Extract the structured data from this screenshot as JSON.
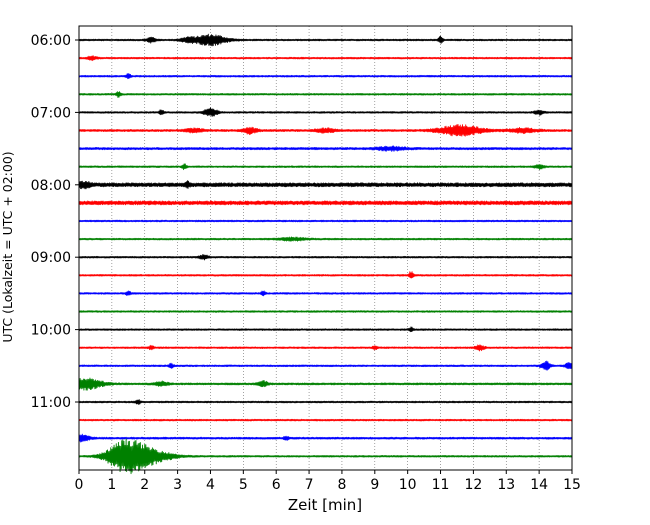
{
  "chart_data": {
    "type": "line",
    "title": "",
    "xlabel": "Zeit  [min]",
    "ylabel": "UTC (Lokalzeit = UTC + 02:00)",
    "xlim": [
      0,
      15
    ],
    "x_ticks": [
      0,
      1,
      2,
      3,
      4,
      5,
      6,
      7,
      8,
      9,
      10,
      11,
      12,
      13,
      14,
      15
    ],
    "x_tick_labels": [
      "0",
      "1",
      "2",
      "3",
      "4",
      "5",
      "6",
      "7",
      "8",
      "9",
      "10",
      "11",
      "12",
      "13",
      "14",
      "15"
    ],
    "y_tick_labels": [
      "06:00",
      "07:00",
      "08:00",
      "09:00",
      "10:00",
      "11:00"
    ],
    "y_tick_trace_index": [
      0,
      4,
      8,
      12,
      16,
      20
    ],
    "grid": "vertical dotted at each minute",
    "legend": "none",
    "trace_colors": [
      "#000000",
      "#ff0000",
      "#0000ff",
      "#008000"
    ],
    "traces": [
      {
        "start": "06:00",
        "base_amp": 0.12,
        "events": [
          {
            "t": 2.2,
            "amp": 0.35,
            "w": 0.1
          },
          {
            "t": 3.3,
            "amp": 0.3,
            "w": 0.15
          },
          {
            "t": 4.0,
            "amp": 0.75,
            "w": 0.35
          },
          {
            "t": 11.0,
            "amp": 0.45,
            "w": 0.05
          }
        ]
      },
      {
        "start": "06:15",
        "base_amp": 0.12,
        "events": [
          {
            "t": 0.4,
            "amp": 0.25,
            "w": 0.1
          }
        ]
      },
      {
        "start": "06:30",
        "base_amp": 0.12,
        "events": [
          {
            "t": 1.5,
            "amp": 0.35,
            "w": 0.05
          }
        ]
      },
      {
        "start": "06:45",
        "base_amp": 0.12,
        "events": [
          {
            "t": 1.2,
            "amp": 0.35,
            "w": 0.05
          }
        ]
      },
      {
        "start": "07:00",
        "base_amp": 0.12,
        "events": [
          {
            "t": 2.5,
            "amp": 0.35,
            "w": 0.05
          },
          {
            "t": 4.0,
            "amp": 0.55,
            "w": 0.15
          },
          {
            "t": 14.0,
            "amp": 0.3,
            "w": 0.1
          }
        ]
      },
      {
        "start": "07:15",
        "base_amp": 0.15,
        "events": [
          {
            "t": 3.5,
            "amp": 0.25,
            "w": 0.2
          },
          {
            "t": 5.2,
            "amp": 0.45,
            "w": 0.15
          },
          {
            "t": 7.5,
            "amp": 0.3,
            "w": 0.2
          },
          {
            "t": 11.6,
            "amp": 0.75,
            "w": 0.45
          },
          {
            "t": 13.5,
            "amp": 0.3,
            "w": 0.3
          }
        ]
      },
      {
        "start": "07:30",
        "base_amp": 0.16,
        "events": [
          {
            "t": 9.5,
            "amp": 0.25,
            "w": 0.3
          }
        ]
      },
      {
        "start": "07:45",
        "base_amp": 0.12,
        "events": [
          {
            "t": 3.2,
            "amp": 0.35,
            "w": 0.05
          },
          {
            "t": 14.0,
            "amp": 0.3,
            "w": 0.1
          }
        ]
      },
      {
        "start": "08:00",
        "base_amp": 0.28,
        "events": [
          {
            "t": 0.15,
            "amp": 0.35,
            "w": 0.15
          },
          {
            "t": 3.3,
            "amp": 0.35,
            "w": 0.05
          }
        ]
      },
      {
        "start": "08:15",
        "base_amp": 0.28,
        "events": []
      },
      {
        "start": "08:30",
        "base_amp": 0.12,
        "events": []
      },
      {
        "start": "08:45",
        "base_amp": 0.12,
        "events": [
          {
            "t": 6.5,
            "amp": 0.2,
            "w": 0.3
          }
        ]
      },
      {
        "start": "09:00",
        "base_amp": 0.12,
        "events": [
          {
            "t": 3.8,
            "amp": 0.3,
            "w": 0.1
          }
        ]
      },
      {
        "start": "09:15",
        "base_amp": 0.12,
        "events": [
          {
            "t": 10.1,
            "amp": 0.5,
            "w": 0.05
          }
        ]
      },
      {
        "start": "09:30",
        "base_amp": 0.12,
        "events": [
          {
            "t": 1.5,
            "amp": 0.3,
            "w": 0.05
          },
          {
            "t": 5.6,
            "amp": 0.3,
            "w": 0.05
          }
        ]
      },
      {
        "start": "09:45",
        "base_amp": 0.12,
        "events": []
      },
      {
        "start": "10:00",
        "base_amp": 0.12,
        "events": [
          {
            "t": 10.1,
            "amp": 0.3,
            "w": 0.05
          }
        ]
      },
      {
        "start": "10:15",
        "base_amp": 0.12,
        "events": [
          {
            "t": 2.2,
            "amp": 0.3,
            "w": 0.05
          },
          {
            "t": 9.0,
            "amp": 0.3,
            "w": 0.05
          },
          {
            "t": 12.2,
            "amp": 0.35,
            "w": 0.1
          }
        ]
      },
      {
        "start": "10:30",
        "base_amp": 0.12,
        "events": [
          {
            "t": 2.8,
            "amp": 0.35,
            "w": 0.05
          },
          {
            "t": 14.2,
            "amp": 0.6,
            "w": 0.1
          },
          {
            "t": 14.95,
            "amp": 0.5,
            "w": 0.1
          }
        ]
      },
      {
        "start": "10:45",
        "base_amp": 0.14,
        "events": [
          {
            "t": 0.2,
            "amp": 0.8,
            "w": 0.35
          },
          {
            "t": 2.5,
            "amp": 0.3,
            "w": 0.15
          },
          {
            "t": 5.6,
            "amp": 0.45,
            "w": 0.1
          }
        ]
      },
      {
        "start": "11:00",
        "base_amp": 0.12,
        "events": [
          {
            "t": 1.8,
            "amp": 0.3,
            "w": 0.05
          }
        ]
      },
      {
        "start": "11:15",
        "base_amp": 0.12,
        "events": []
      },
      {
        "start": "11:30",
        "base_amp": 0.14,
        "events": [
          {
            "t": 0.1,
            "amp": 0.5,
            "w": 0.15
          },
          {
            "t": 6.3,
            "amp": 0.3,
            "w": 0.05
          }
        ]
      },
      {
        "start": "11:45",
        "base_amp": 0.12,
        "events": [
          {
            "t": 1.3,
            "amp": 1.3,
            "w": 0.35
          },
          {
            "t": 1.75,
            "amp": 1.5,
            "w": 0.45
          },
          {
            "t": 2.5,
            "amp": 0.35,
            "w": 0.4
          }
        ]
      }
    ]
  }
}
